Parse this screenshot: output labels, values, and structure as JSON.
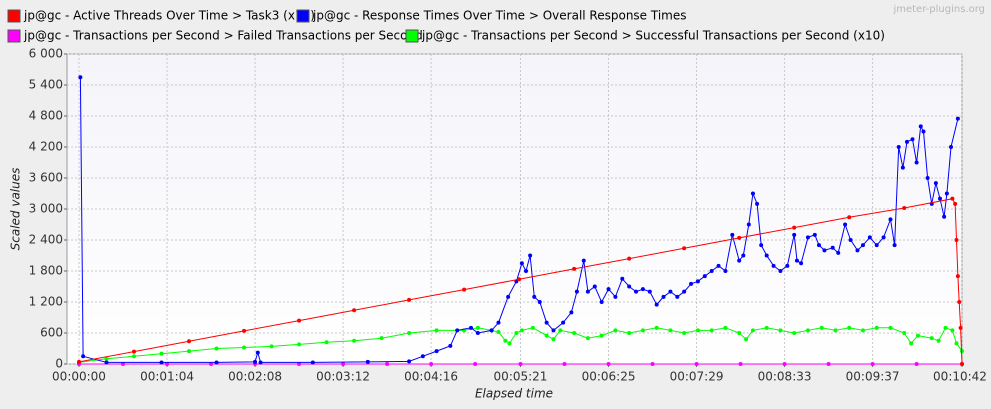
{
  "chart_data": {
    "type": "line",
    "watermark": "jmeter-plugins.org",
    "xlabel": "Elapsed time",
    "ylabel": "Scaled values",
    "xlim": [
      0,
      642
    ],
    "ylim": [
      0,
      6000
    ],
    "grid": true,
    "legend": "top",
    "xticks": [
      {
        "value": 0,
        "label": "00:00:00"
      },
      {
        "value": 64,
        "label": "00:01:04"
      },
      {
        "value": 128,
        "label": "00:02:08"
      },
      {
        "value": 192,
        "label": "00:03:12"
      },
      {
        "value": 256,
        "label": "00:04:16"
      },
      {
        "value": 321,
        "label": "00:05:21"
      },
      {
        "value": 385,
        "label": "00:06:25"
      },
      {
        "value": 449,
        "label": "00:07:29"
      },
      {
        "value": 513,
        "label": "00:08:33"
      },
      {
        "value": 577,
        "label": "00:09:37"
      },
      {
        "value": 642,
        "label": "00:10:42"
      }
    ],
    "yticks": [
      0,
      600,
      {
        "value": 1200,
        "label": "1 200"
      },
      {
        "value": 1800,
        "label": "1 800"
      },
      {
        "value": 2400,
        "label": "2 400"
      },
      {
        "value": 3000,
        "label": "3 000"
      },
      {
        "value": 3600,
        "label": "3 600"
      },
      {
        "value": 4200,
        "label": "4 200"
      },
      {
        "value": 4800,
        "label": "4 800"
      },
      {
        "value": 5400,
        "label": "5 400"
      },
      {
        "value": 6000,
        "label": "6 000"
      }
    ],
    "series": [
      {
        "name": "jp@gc - Active Threads Over Time > Task3 (x10)",
        "color": "#ff0000",
        "x": [
          0,
          40,
          80,
          120,
          160,
          200,
          240,
          280,
          320,
          360,
          400,
          440,
          480,
          520,
          560,
          600,
          635,
          637,
          638,
          639,
          640,
          641,
          642
        ],
        "values": [
          40,
          240,
          440,
          640,
          840,
          1040,
          1240,
          1440,
          1640,
          1840,
          2040,
          2240,
          2440,
          2640,
          2840,
          3020,
          3200,
          3100,
          2400,
          1700,
          1200,
          700,
          0
        ]
      },
      {
        "name": "jp@gc - Response Times Over Time > Overall Response Times",
        "color": "#0000ff",
        "x": [
          1,
          3,
          20,
          60,
          100,
          128,
          130,
          132,
          170,
          210,
          240,
          250,
          260,
          270,
          275,
          285,
          290,
          300,
          305,
          312,
          318,
          322,
          325,
          328,
          331,
          335,
          340,
          345,
          352,
          358,
          362,
          367,
          370,
          375,
          380,
          385,
          390,
          395,
          400,
          405,
          410,
          415,
          420,
          425,
          430,
          435,
          440,
          445,
          450,
          455,
          460,
          465,
          470,
          475,
          480,
          483,
          487,
          490,
          493,
          496,
          500,
          505,
          510,
          515,
          520,
          522,
          525,
          530,
          535,
          538,
          542,
          548,
          552,
          557,
          561,
          566,
          570,
          575,
          580,
          585,
          590,
          593,
          596,
          599,
          602,
          606,
          609,
          612,
          614,
          617,
          620,
          623,
          626,
          629,
          631,
          634,
          639
        ],
        "values": [
          5550,
          150,
          30,
          30,
          30,
          40,
          220,
          30,
          30,
          40,
          50,
          150,
          250,
          350,
          650,
          700,
          600,
          650,
          800,
          1300,
          1600,
          1950,
          1800,
          2100,
          1300,
          1200,
          800,
          650,
          800,
          1000,
          1400,
          2000,
          1400,
          1500,
          1200,
          1450,
          1300,
          1650,
          1500,
          1400,
          1450,
          1400,
          1150,
          1300,
          1400,
          1300,
          1400,
          1550,
          1600,
          1700,
          1800,
          1900,
          1800,
          2500,
          2000,
          2100,
          2700,
          3300,
          3100,
          2300,
          2100,
          1900,
          1800,
          1900,
          2500,
          2000,
          1950,
          2450,
          2500,
          2300,
          2200,
          2250,
          2150,
          2700,
          2400,
          2200,
          2300,
          2450,
          2300,
          2450,
          2800,
          2300,
          4200,
          3800,
          4300,
          4350,
          3900,
          4600,
          4500,
          3600,
          3100,
          3500,
          3200,
          2850,
          3300,
          4200,
          4750
        ]
      },
      {
        "name": "jp@gc - Transactions per Second > Failed Transactions per Second",
        "color": "#ff00ff",
        "x": [
          0,
          32,
          64,
          96,
          128,
          160,
          192,
          224,
          256,
          288,
          321,
          353,
          385,
          417,
          449,
          481,
          513,
          545,
          577,
          609,
          642
        ],
        "values": [
          0,
          0,
          0,
          0,
          0,
          0,
          0,
          0,
          0,
          0,
          0,
          0,
          0,
          0,
          0,
          0,
          0,
          0,
          0,
          0,
          0
        ]
      },
      {
        "name": "jp@gc - Transactions per Second > Successful Transactions per Second (x10)",
        "color": "#00ff00",
        "x": [
          0,
          20,
          40,
          60,
          80,
          100,
          120,
          140,
          160,
          180,
          200,
          220,
          240,
          260,
          280,
          290,
          300,
          305,
          310,
          313,
          318,
          322,
          330,
          340,
          345,
          350,
          360,
          370,
          380,
          390,
          400,
          410,
          420,
          430,
          440,
          450,
          460,
          470,
          480,
          485,
          490,
          500,
          510,
          520,
          530,
          540,
          550,
          560,
          570,
          580,
          590,
          600,
          605,
          610,
          620,
          625,
          630,
          635,
          638,
          642
        ],
        "values": [
          30,
          100,
          150,
          200,
          250,
          300,
          320,
          340,
          380,
          420,
          450,
          500,
          600,
          650,
          650,
          700,
          650,
          620,
          450,
          400,
          600,
          650,
          700,
          550,
          480,
          650,
          600,
          500,
          550,
          650,
          600,
          650,
          700,
          650,
          600,
          650,
          650,
          700,
          600,
          480,
          650,
          700,
          650,
          600,
          650,
          700,
          650,
          700,
          650,
          700,
          700,
          600,
          400,
          550,
          500,
          450,
          700,
          650,
          400,
          250
        ]
      }
    ]
  }
}
